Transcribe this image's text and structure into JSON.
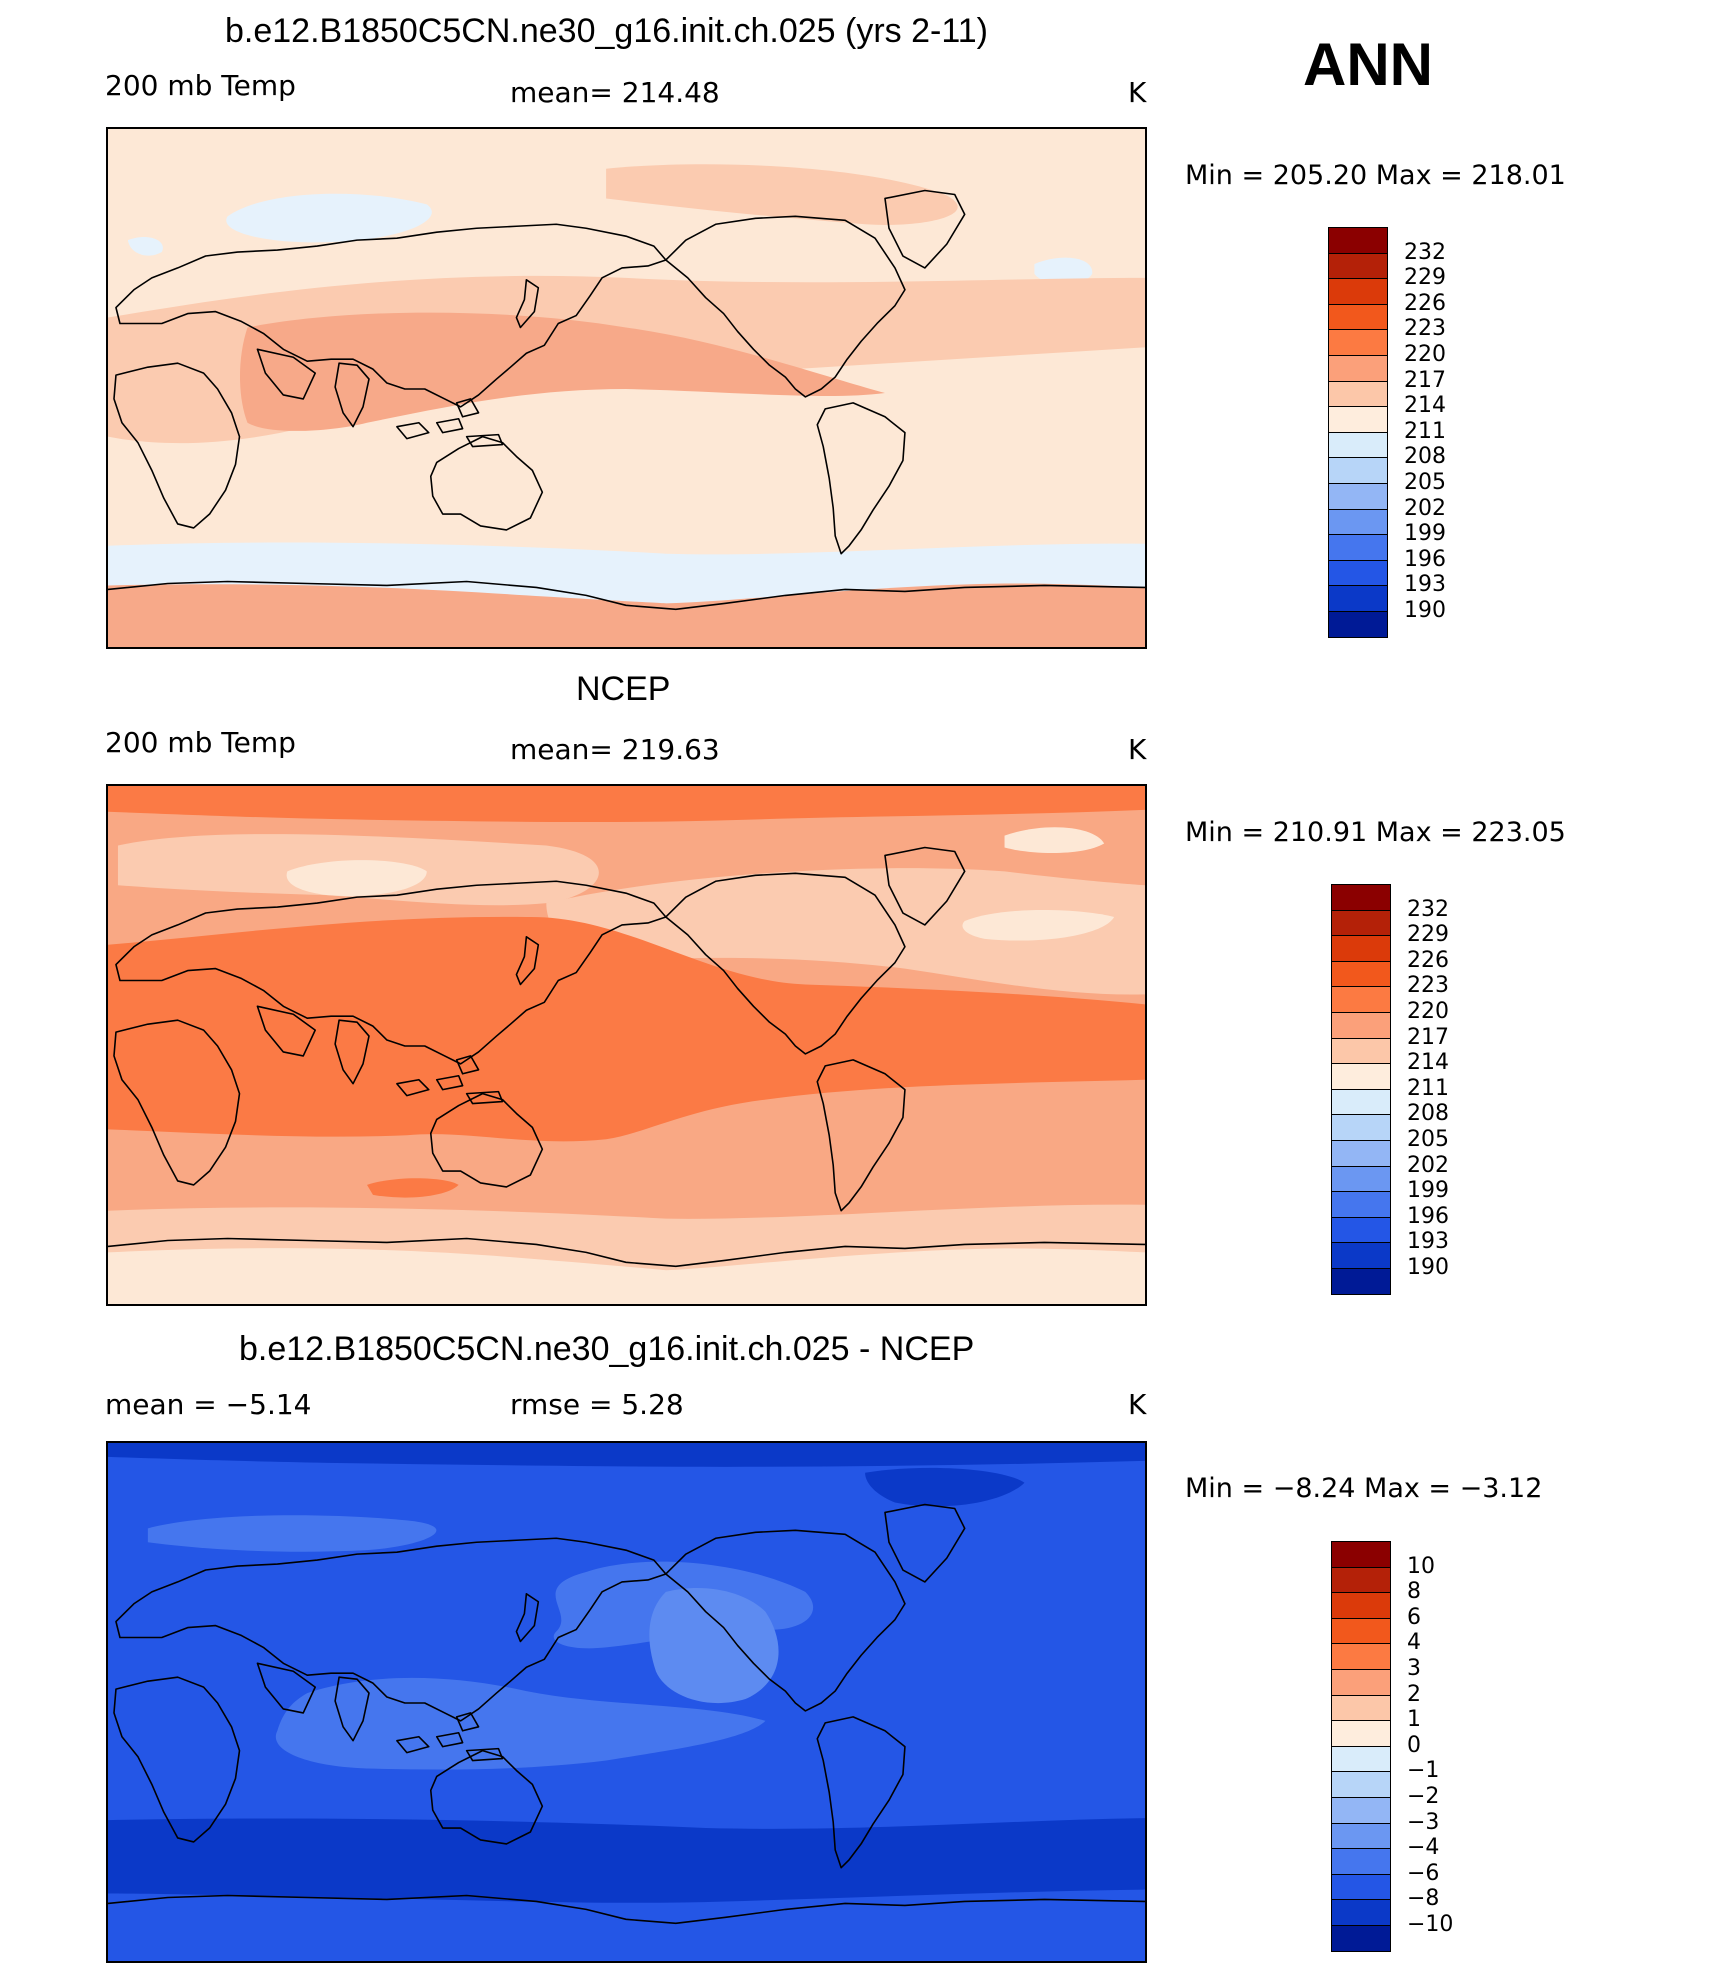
{
  "season": "ANN",
  "panels": [
    {
      "title": "b.e12.B1850C5CN.ne30_g16.init.ch.025 (yrs 2-11)",
      "left_label": "200 mb Temp",
      "center_label": "mean=  214.48",
      "units": "K",
      "minmax": "Min  =  205.20  Max  =  218.01",
      "palette": [
        "#e6f2fc",
        "#fde8d6",
        "#fbcbb0",
        "#f7a989"
      ],
      "colorbar": {
        "labels": [
          "232",
          "229",
          "226",
          "223",
          "220",
          "217",
          "214",
          "211",
          "208",
          "205",
          "202",
          "199",
          "196",
          "193",
          "190"
        ],
        "colors": [
          "#8b0000",
          "#b42108",
          "#db3a0a",
          "#f2581c",
          "#fc7a42",
          "#fba07a",
          "#fcc7a9",
          "#feeddd",
          "#d9ecfa",
          "#b7d5f8",
          "#93b6f5",
          "#6b97f2",
          "#4576ee",
          "#2456e6",
          "#0b39c8",
          "#001a96"
        ]
      }
    },
    {
      "title": "NCEP",
      "left_label": "200 mb Temp",
      "center_label": "mean=  219.63",
      "units": "K",
      "minmax": "Min  =  210.91  Max  =  223.05",
      "palette": [
        "#fde8d6",
        "#fbcbb0",
        "#f9a884",
        "#fb7a45"
      ],
      "colorbar": {
        "labels": [
          "232",
          "229",
          "226",
          "223",
          "220",
          "217",
          "214",
          "211",
          "208",
          "205",
          "202",
          "199",
          "196",
          "193",
          "190"
        ],
        "colors": [
          "#8b0000",
          "#b42108",
          "#db3a0a",
          "#f2581c",
          "#fc7a42",
          "#fba07a",
          "#fcc7a9",
          "#feeddd",
          "#d9ecfa",
          "#b7d5f8",
          "#93b6f5",
          "#6b97f2",
          "#4576ee",
          "#2456e6",
          "#0b39c8",
          "#001a96"
        ]
      }
    },
    {
      "title": "b.e12.B1850C5CN.ne30_g16.init.ch.025 - NCEP",
      "left_label": "mean  =    −5.14",
      "center_label": "rmse  =     5.28",
      "units": "K",
      "minmax": "Min  =    −8.24  Max  =    −3.12",
      "palette": [
        "#0b39c8",
        "#2456e6",
        "#4576ee",
        "#5d8bf1"
      ],
      "colorbar": {
        "labels": [
          "10",
          "8",
          "6",
          "4",
          "3",
          "2",
          "1",
          "0",
          "−1",
          "−2",
          "−3",
          "−4",
          "−6",
          "−8",
          "−10"
        ],
        "colors": [
          "#8b0000",
          "#b42108",
          "#db3a0a",
          "#f2581c",
          "#fc7a42",
          "#fba07a",
          "#fcc7a9",
          "#feeddd",
          "#d9ecfa",
          "#b7d5f8",
          "#93b6f5",
          "#6b97f2",
          "#4576ee",
          "#2456e6",
          "#0b39c8",
          "#001a96"
        ]
      }
    }
  ]
}
